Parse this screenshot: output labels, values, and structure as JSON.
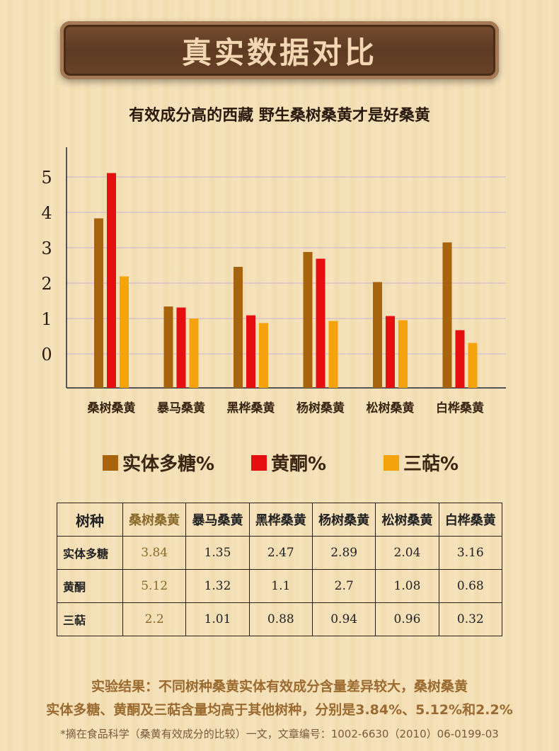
{
  "banner": {
    "title": "真实数据对比"
  },
  "subtitle": "有效成分高的西藏 野生桑树桑黄才是好桑黄",
  "chart_data": {
    "type": "bar",
    "categories": [
      "桑树桑黄",
      "暴马桑黄",
      "黑桦桑黄",
      "杨树桑黄",
      "松树桑黄",
      "白桦桑黄"
    ],
    "series": [
      {
        "name": "实体多糖%",
        "color": "#a8640c",
        "values": [
          3.84,
          1.35,
          2.47,
          2.89,
          2.04,
          3.16
        ]
      },
      {
        "name": "黄酮%",
        "color": "#e50f0f",
        "values": [
          5.12,
          1.32,
          1.1,
          2.7,
          1.08,
          0.68
        ]
      },
      {
        "name": "三萜%",
        "color": "#f5a30c",
        "values": [
          2.2,
          1.01,
          0.88,
          0.94,
          0.96,
          0.32
        ]
      }
    ],
    "yticks": [
      "0",
      "1",
      "2",
      "3",
      "4",
      "5"
    ],
    "grid": true,
    "legend": "bottom"
  },
  "legend": [
    "实体多糖%",
    "黄酮%",
    "三萜%"
  ],
  "table": {
    "corner": "树种",
    "headers": [
      "桑树桑黄",
      "暴马桑黄",
      "黑桦桑黄",
      "杨树桑黄",
      "松树桑黄",
      "白桦桑黄"
    ],
    "rows": [
      {
        "label": "实体多糖",
        "values": [
          "3.84",
          "1.35",
          "2.47",
          "2.89",
          "2.04",
          "3.16"
        ]
      },
      {
        "label": "黄酮",
        "values": [
          "5.12",
          "1.32",
          "1.1",
          "2.7",
          "1.08",
          "0.68"
        ]
      },
      {
        "label": "三萜",
        "values": [
          "2.2",
          "1.01",
          "0.88",
          "0.94",
          "0.96",
          "0.32"
        ]
      }
    ]
  },
  "conclusion": {
    "line1": "实验结果：不同树种桑黄实体有效成分含量差异较大，桑树桑黄",
    "line2": "实体多糖、黄酮及三萜含量均高于其他树种，分别是3.84%、5.12%和2.2%"
  },
  "footnote": "*摘在食品科学（桑黄有效成分的比较）一文，文章编号：1002-6630（2010）06-0199-03"
}
